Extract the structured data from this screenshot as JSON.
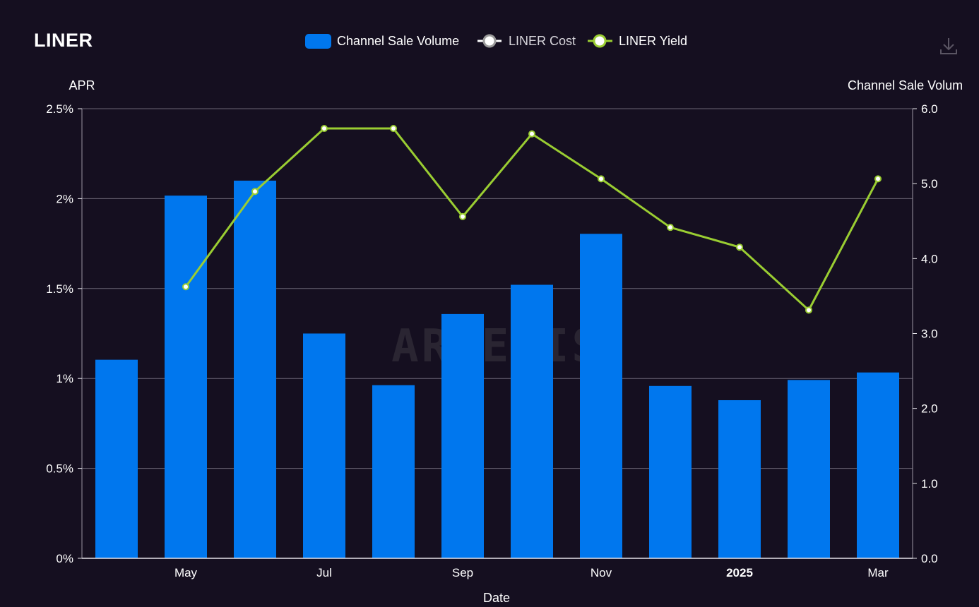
{
  "header": {
    "title": "LINER"
  },
  "toolbar": {
    "download_icon": "download-icon"
  },
  "watermark": "ARTEMIS",
  "colors": {
    "background": "#150f20",
    "bar": "#0077ee",
    "cost_line": "#ffffff",
    "yield_line": "#9acd32",
    "grid": "#6b6675",
    "watermark": "#2a2532"
  },
  "chart_data": {
    "type": "bar",
    "x_tick_labels": [
      "May",
      "Jul",
      "Sep",
      "Nov",
      "2025",
      "Mar"
    ],
    "xlabel": "Date",
    "y_left": {
      "name": "APR",
      "range": [
        0,
        2.5
      ],
      "ticks": [
        "0%",
        "0.5%",
        "1%",
        "1.5%",
        "2%",
        "2.5%"
      ]
    },
    "y_right": {
      "name": "Channel Sale Volum",
      "range": [
        0,
        6
      ],
      "ticks": [
        "0.0",
        "1.0",
        "2.0",
        "3.0",
        "4.0",
        "5.0",
        "6.0"
      ]
    },
    "legend": {
      "position": "top-center",
      "items": [
        {
          "label": "Channel Sale Volume",
          "shape": "rounded-rect"
        },
        {
          "label": "LINER Cost",
          "shape": "circle-line"
        },
        {
          "label": "LINER Yield",
          "shape": "circle-line"
        }
      ]
    },
    "grid": true,
    "series": [
      {
        "name": "Channel Sale Volume",
        "type": "bar",
        "axis": "right",
        "x": [
          "2024-04-01",
          "2024-05-01",
          "2024-06-01",
          "2024-07-01",
          "2024-08-01",
          "2024-09-01",
          "2024-10-01",
          "2024-11-01",
          "2024-12-01",
          "2025-01-01",
          "2025-02-01",
          "2025-03-01"
        ],
        "values": [
          2.65,
          4.84,
          5.04,
          3.0,
          2.31,
          3.26,
          3.65,
          4.33,
          2.3,
          2.11,
          2.38,
          2.48
        ]
      },
      {
        "name": "LINER Yield",
        "type": "line",
        "axis": "left",
        "x": [
          "2024-05-01",
          "2024-06-01",
          "2024-07-01",
          "2024-08-01",
          "2024-09-01",
          "2024-10-01",
          "2024-11-01",
          "2024-12-01",
          "2025-01-01",
          "2025-02-01",
          "2025-03-01"
        ],
        "values": [
          1.51,
          2.04,
          2.39,
          2.39,
          1.9,
          2.36,
          2.11,
          1.84,
          1.73,
          1.38,
          2.11
        ]
      },
      {
        "name": "LINER Cost",
        "type": "line",
        "axis": "left",
        "x": [],
        "values": []
      }
    ]
  }
}
